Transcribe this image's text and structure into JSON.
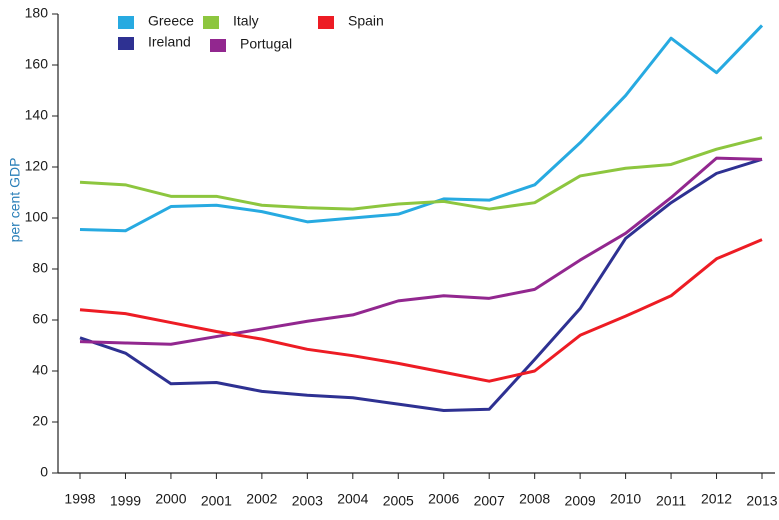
{
  "chart_data": {
    "type": "line",
    "y_label": "per cent GDP",
    "categories": [
      "1998",
      "1999",
      "2000",
      "2001",
      "2002",
      "2003",
      "2004",
      "2005",
      "2006",
      "2007",
      "2008",
      "2009",
      "2010",
      "2011",
      "2012",
      "2013"
    ],
    "series": [
      {
        "name": "Greece",
        "color": "#27aae1",
        "values": [
          95.5,
          95,
          104.5,
          105,
          102.5,
          98.5,
          100,
          101.5,
          107.5,
          107,
          113,
          129.5,
          148,
          170.5,
          157,
          175.5
        ]
      },
      {
        "name": "Ireland",
        "color": "#2e3192",
        "values": [
          53,
          47,
          35,
          35.5,
          32,
          30.5,
          29.5,
          27,
          24.5,
          25,
          44.5,
          64.5,
          92,
          106,
          117.5,
          123
        ]
      },
      {
        "name": "Italy",
        "color": "#8dc63f",
        "values": [
          114,
          113,
          108.5,
          108.5,
          105,
          104,
          103.5,
          105.5,
          106.5,
          103.5,
          106,
          116.5,
          119.5,
          121,
          127,
          131.5
        ]
      },
      {
        "name": "Portugal",
        "color": "#92278f",
        "values": [
          51.5,
          51,
          50.5,
          53.5,
          56.5,
          59.5,
          62,
          67.5,
          69.5,
          68.5,
          72,
          83.5,
          94,
          108,
          123.5,
          123
        ]
      },
      {
        "name": "Spain",
        "color": "#ed1c24",
        "values": [
          64,
          62.5,
          59,
          55.5,
          52.5,
          48.5,
          46,
          43,
          39.5,
          36,
          40,
          54,
          61.5,
          69.5,
          84,
          91.5
        ]
      }
    ],
    "ylim": [
      0,
      180
    ],
    "yticks": [
      0,
      20,
      40,
      60,
      80,
      100,
      120,
      140,
      160,
      180
    ],
    "grid": false
  }
}
